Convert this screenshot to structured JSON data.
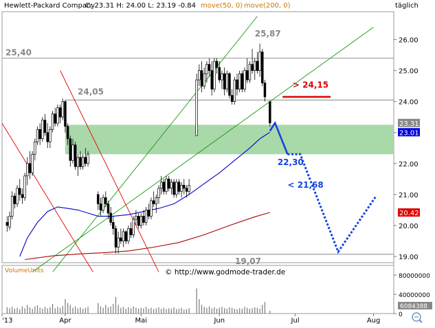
{
  "header": {
    "title": "Hewlett-Packard Company",
    "quote": "C: 23.31  H: 24.00  L: 23.19  -0.84",
    "ma50_label": "move(50, 0)",
    "ma200_label": "move(200, 0)",
    "interval": "täglich"
  },
  "colors": {
    "bull_candle": "#ffffff",
    "bear_candle": "#000000",
    "ma50": "#0000cc",
    "ma200": "#aa0000",
    "zone": "#a9d8a9",
    "trend_green": "#119911",
    "trend_red": "#dd0000",
    "projection": "#1144dd",
    "last_price_badge": "#888888",
    "ma50_badge": "#0000dd",
    "ma200_badge": "#dd0000"
  },
  "chart_data": {
    "type": "candlestick",
    "price_axis": {
      "ylim": [
        18.8,
        26.9
      ],
      "ticks": [
        "26.00",
        "25.00",
        "24.00",
        "23.00",
        "22.00",
        "21.00",
        "20.00",
        "19.00"
      ]
    },
    "time_axis": {
      "labels": [
        {
          "text": "'13",
          "day": 0
        },
        {
          "text": "Apr",
          "day": 25
        },
        {
          "text": "Mai",
          "day": 55
        },
        {
          "text": "Jun",
          "day": 86
        },
        {
          "text": "Jul",
          "day": 116
        },
        {
          "text": "Aug",
          "day": 147
        }
      ],
      "xlim": [
        0,
        155
      ]
    },
    "ohlc": [
      [
        2,
        20.1,
        20.3,
        19.8,
        20.0
      ],
      [
        3,
        19.95,
        20.45,
        19.85,
        20.3
      ],
      [
        4,
        20.3,
        21.1,
        20.2,
        20.95
      ],
      [
        5,
        20.95,
        21.05,
        20.55,
        20.7
      ],
      [
        6,
        20.7,
        21.3,
        20.6,
        21.2
      ],
      [
        7,
        21.2,
        21.5,
        20.8,
        21.0
      ],
      [
        8,
        21.0,
        21.2,
        20.7,
        20.9
      ],
      [
        9,
        20.9,
        21.7,
        20.8,
        21.6
      ],
      [
        10,
        21.6,
        22.2,
        21.3,
        22.0
      ],
      [
        11,
        22.0,
        22.4,
        21.5,
        21.7
      ],
      [
        12,
        21.7,
        22.4,
        21.6,
        22.3
      ],
      [
        13,
        22.3,
        22.8,
        22.1,
        22.7
      ],
      [
        14,
        22.7,
        23.2,
        22.6,
        23.1
      ],
      [
        15,
        23.1,
        23.3,
        22.6,
        22.8
      ],
      [
        16,
        22.8,
        23.5,
        22.7,
        23.4
      ],
      [
        17,
        23.4,
        23.6,
        22.9,
        23.0
      ],
      [
        18,
        23.0,
        23.3,
        22.5,
        22.7
      ],
      [
        19,
        22.7,
        23.2,
        22.5,
        23.1
      ],
      [
        20,
        23.1,
        23.7,
        23.0,
        23.6
      ],
      [
        21,
        23.6,
        23.8,
        23.2,
        23.3
      ],
      [
        22,
        23.3,
        23.9,
        23.2,
        23.8
      ],
      [
        23,
        23.8,
        23.9,
        23.3,
        23.5
      ],
      [
        24,
        23.5,
        24.1,
        23.4,
        24.0
      ],
      [
        25,
        24.0,
        24.05,
        23.0,
        23.2
      ],
      [
        26,
        23.2,
        23.3,
        22.6,
        22.8
      ],
      [
        27,
        22.8,
        22.9,
        21.9,
        22.1
      ],
      [
        28,
        22.1,
        22.8,
        22.0,
        22.6
      ],
      [
        29,
        22.6,
        22.7,
        21.8,
        21.9
      ],
      [
        30,
        21.9,
        22.3,
        21.6,
        22.2
      ],
      [
        31,
        22.2,
        22.4,
        21.8,
        21.9
      ],
      [
        32,
        21.9,
        22.3,
        21.8,
        22.2
      ],
      [
        33,
        22.2,
        22.5,
        21.9,
        22.0
      ],
      [
        34,
        22.0,
        22.4,
        21.9,
        22.3
      ],
      [
        38,
        21.0,
        21.1,
        20.5,
        20.7
      ],
      [
        39,
        20.7,
        20.9,
        20.3,
        20.5
      ],
      [
        40,
        20.5,
        21.0,
        20.4,
        20.9
      ],
      [
        41,
        20.9,
        21.1,
        20.6,
        20.7
      ],
      [
        42,
        20.7,
        20.8,
        20.2,
        20.4
      ],
      [
        43,
        20.4,
        20.6,
        20.0,
        20.1
      ],
      [
        44,
        20.1,
        20.3,
        19.7,
        19.9
      ],
      [
        45,
        19.9,
        20.0,
        19.1,
        19.3
      ],
      [
        46,
        19.3,
        19.8,
        19.1,
        19.6
      ],
      [
        47,
        19.6,
        19.9,
        19.4,
        19.5
      ],
      [
        48,
        19.5,
        19.9,
        19.3,
        19.8
      ],
      [
        49,
        19.8,
        19.85,
        19.4,
        19.5
      ],
      [
        50,
        19.5,
        20.0,
        19.4,
        19.9
      ],
      [
        51,
        19.9,
        20.1,
        19.6,
        19.7
      ],
      [
        52,
        19.7,
        20.3,
        19.6,
        20.2
      ],
      [
        53,
        20.2,
        20.5,
        20.0,
        20.3
      ],
      [
        54,
        20.3,
        20.4,
        19.9,
        20.0
      ],
      [
        55,
        20.0,
        20.4,
        19.9,
        20.3
      ],
      [
        56,
        20.3,
        20.5,
        20.0,
        20.1
      ],
      [
        57,
        20.1,
        20.6,
        20.0,
        20.5
      ],
      [
        58,
        20.5,
        20.7,
        20.2,
        20.3
      ],
      [
        59,
        20.3,
        20.9,
        20.2,
        20.8
      ],
      [
        60,
        20.8,
        21.1,
        20.6,
        20.7
      ],
      [
        61,
        20.7,
        21.0,
        20.4,
        20.9
      ],
      [
        62,
        20.9,
        21.3,
        20.7,
        21.2
      ],
      [
        63,
        21.2,
        21.6,
        21.0,
        21.4
      ],
      [
        64,
        21.4,
        21.5,
        21.0,
        21.1
      ],
      [
        65,
        21.1,
        21.6,
        21.0,
        21.5
      ],
      [
        66,
        21.5,
        21.6,
        21.1,
        21.2
      ],
      [
        67,
        21.2,
        21.5,
        21.0,
        21.4
      ],
      [
        68,
        21.4,
        21.5,
        20.9,
        21.0
      ],
      [
        69,
        21.0,
        21.5,
        20.9,
        21.4
      ],
      [
        70,
        21.4,
        21.5,
        21.0,
        21.1
      ],
      [
        71,
        21.1,
        21.4,
        20.9,
        21.3
      ],
      [
        72,
        21.3,
        21.5,
        21.0,
        21.2
      ],
      [
        73,
        21.2,
        21.3,
        20.9,
        21.1
      ],
      [
        74,
        21.1,
        21.5,
        21.0,
        21.3
      ],
      [
        77,
        22.9,
        24.9,
        22.9,
        24.7
      ],
      [
        78,
        24.7,
        25.2,
        24.5,
        25.0
      ],
      [
        79,
        25.0,
        25.3,
        24.3,
        24.5
      ],
      [
        80,
        24.5,
        25.1,
        24.4,
        24.9
      ],
      [
        81,
        24.9,
        25.3,
        24.6,
        25.2
      ],
      [
        82,
        25.2,
        25.4,
        24.8,
        25.0
      ],
      [
        83,
        25.0,
        25.3,
        24.2,
        24.4
      ],
      [
        84,
        24.4,
        25.4,
        24.3,
        25.3
      ],
      [
        85,
        25.3,
        25.4,
        24.9,
        25.1
      ],
      [
        86,
        25.1,
        25.3,
        24.6,
        24.7
      ],
      [
        87,
        24.7,
        25.0,
        24.4,
        24.9
      ],
      [
        88,
        24.9,
        25.1,
        24.2,
        24.4
      ],
      [
        89,
        24.4,
        25.0,
        24.3,
        24.9
      ],
      [
        90,
        24.9,
        24.95,
        24.1,
        24.2
      ],
      [
        91,
        24.2,
        24.4,
        23.9,
        24.0
      ],
      [
        92,
        24.0,
        24.8,
        23.9,
        24.7
      ],
      [
        93,
        24.7,
        24.9,
        24.2,
        24.4
      ],
      [
        94,
        24.4,
        25.0,
        24.3,
        24.9
      ],
      [
        95,
        24.9,
        25.0,
        24.3,
        24.4
      ],
      [
        96,
        24.4,
        25.1,
        24.3,
        25.0
      ],
      [
        97,
        25.0,
        25.4,
        24.6,
        24.7
      ],
      [
        98,
        24.7,
        25.3,
        24.6,
        25.2
      ],
      [
        99,
        25.2,
        25.7,
        24.9,
        25.0
      ],
      [
        100,
        25.0,
        25.4,
        24.7,
        25.3
      ],
      [
        101,
        25.3,
        25.6,
        24.9,
        25.0
      ],
      [
        102,
        25.0,
        25.87,
        24.8,
        25.6
      ],
      [
        103,
        25.6,
        25.7,
        24.5,
        24.6
      ],
      [
        104,
        24.6,
        24.7,
        24.0,
        24.15
      ],
      [
        106,
        24.0,
        24.0,
        23.19,
        23.31
      ]
    ],
    "ma50": [
      [
        7,
        19.0
      ],
      [
        10,
        19.6
      ],
      [
        14,
        20.1
      ],
      [
        18,
        20.45
      ],
      [
        22,
        20.6
      ],
      [
        26,
        20.55
      ],
      [
        30,
        20.5
      ],
      [
        34,
        20.4
      ],
      [
        38,
        20.3
      ],
      [
        44,
        20.3
      ],
      [
        50,
        20.35
      ],
      [
        56,
        20.45
      ],
      [
        62,
        20.55
      ],
      [
        68,
        20.7
      ],
      [
        74,
        21.0
      ],
      [
        80,
        21.35
      ],
      [
        86,
        21.7
      ],
      [
        92,
        22.1
      ],
      [
        98,
        22.5
      ],
      [
        102,
        22.8
      ],
      [
        106,
        23.01
      ]
    ],
    "ma200": [
      [
        9,
        18.9
      ],
      [
        20,
        19.02
      ],
      [
        30,
        19.08
      ],
      [
        40,
        19.12
      ],
      [
        50,
        19.18
      ],
      [
        60,
        19.3
      ],
      [
        70,
        19.45
      ],
      [
        80,
        19.7
      ],
      [
        90,
        20.0
      ],
      [
        100,
        20.28
      ],
      [
        106,
        20.42
      ]
    ],
    "support_zone": {
      "from_day": 25,
      "to_day": 155,
      "high": 23.25,
      "low": 22.3
    },
    "horizontal_levels": [
      {
        "label": "25,40",
        "value": 25.4,
        "from_day": 0,
        "to_day": 155
      },
      {
        "label": "24,05",
        "value": 24.05,
        "from_day": 25,
        "to_day": 155
      },
      {
        "label": "19,07",
        "value": 19.07,
        "from_day": 40,
        "to_day": 155
      }
    ],
    "level_labels": [
      {
        "label": "25,87",
        "day": 100,
        "value": 26.1
      },
      {
        "label": "24,15",
        "day": 115,
        "value": 24.45,
        "prefix": "> "
      },
      {
        "label": "22,30",
        "day": 109,
        "value": 21.95
      },
      {
        "label": "21,68",
        "day": 113,
        "value": 21.22,
        "prefix": "< "
      }
    ],
    "trend_lines": [
      {
        "color": "green",
        "from": [
          20,
          18.5
        ],
        "to": [
          101,
          26.75
        ]
      },
      {
        "color": "green",
        "from": [
          12,
          18.5
        ],
        "to": [
          147,
          26.4
        ]
      },
      {
        "color": "red",
        "from": [
          23,
          25.0
        ],
        "to": [
          62,
          18.5
        ]
      },
      {
        "color": "red",
        "from": [
          36,
          18.5
        ],
        "to": [
          0,
          23.3
        ]
      }
    ],
    "resistance_line": {
      "from_day": 111,
      "to_day": 130,
      "value": 24.15
    },
    "projection_solid": [
      [
        106,
        23.05
      ],
      [
        108,
        23.31
      ],
      [
        113,
        22.3
      ]
    ],
    "projection_dotted": [
      [
        113,
        22.3
      ],
      [
        118,
        22.3
      ],
      [
        133,
        19.15
      ],
      [
        148,
        20.95
      ]
    ],
    "badges": [
      {
        "label": "23.31",
        "value": 23.31,
        "kind": "last"
      },
      {
        "label": "23.01",
        "value": 23.01,
        "kind": "ma50"
      },
      {
        "label": "20.42",
        "value": 20.42,
        "kind": "ma200"
      }
    ],
    "volume": {
      "label": "VolumeUnits",
      "ticks": [
        "80000000",
        "40000000",
        "0"
      ],
      "last_value": "6084388",
      "max": 100000000,
      "values": [
        [
          2,
          13
        ],
        [
          3,
          11
        ],
        [
          4,
          14
        ],
        [
          5,
          10
        ],
        [
          6,
          12
        ],
        [
          7,
          9
        ],
        [
          8,
          15
        ],
        [
          9,
          11
        ],
        [
          10,
          18
        ],
        [
          11,
          13
        ],
        [
          12,
          10
        ],
        [
          13,
          15
        ],
        [
          14,
          17
        ],
        [
          15,
          12
        ],
        [
          16,
          10
        ],
        [
          17,
          14
        ],
        [
          18,
          11
        ],
        [
          19,
          13
        ],
        [
          20,
          20
        ],
        [
          21,
          11
        ],
        [
          22,
          14
        ],
        [
          23,
          12
        ],
        [
          24,
          16
        ],
        [
          25,
          30
        ],
        [
          26,
          22
        ],
        [
          27,
          18
        ],
        [
          28,
          12
        ],
        [
          29,
          15
        ],
        [
          30,
          11
        ],
        [
          31,
          13
        ],
        [
          32,
          10
        ],
        [
          33,
          12
        ],
        [
          34,
          14
        ],
        [
          38,
          22
        ],
        [
          39,
          15
        ],
        [
          40,
          12
        ],
        [
          41,
          18
        ],
        [
          42,
          13
        ],
        [
          43,
          15
        ],
        [
          44,
          20
        ],
        [
          45,
          34
        ],
        [
          46,
          18
        ],
        [
          47,
          12
        ],
        [
          48,
          14
        ],
        [
          49,
          10
        ],
        [
          50,
          13
        ],
        [
          51,
          11
        ],
        [
          52,
          15
        ],
        [
          53,
          12
        ],
        [
          54,
          10
        ],
        [
          55,
          12
        ],
        [
          56,
          11
        ],
        [
          57,
          14
        ],
        [
          58,
          10
        ],
        [
          59,
          12
        ],
        [
          60,
          9
        ],
        [
          61,
          11
        ],
        [
          62,
          13
        ],
        [
          63,
          10
        ],
        [
          64,
          12
        ],
        [
          65,
          9
        ],
        [
          66,
          11
        ],
        [
          67,
          10
        ],
        [
          68,
          13
        ],
        [
          69,
          9
        ],
        [
          70,
          10
        ],
        [
          71,
          12
        ],
        [
          72,
          8
        ],
        [
          73,
          9
        ],
        [
          74,
          11
        ],
        [
          77,
          52
        ],
        [
          78,
          30
        ],
        [
          79,
          18
        ],
        [
          80,
          14
        ],
        [
          81,
          12
        ],
        [
          82,
          15
        ],
        [
          83,
          11
        ],
        [
          84,
          13
        ],
        [
          85,
          10
        ],
        [
          86,
          12
        ],
        [
          87,
          14
        ],
        [
          88,
          11
        ],
        [
          89,
          10
        ],
        [
          90,
          13
        ],
        [
          91,
          12
        ],
        [
          92,
          10
        ],
        [
          93,
          9
        ],
        [
          94,
          11
        ],
        [
          95,
          10
        ],
        [
          96,
          14
        ],
        [
          97,
          12
        ],
        [
          98,
          10
        ],
        [
          99,
          11
        ],
        [
          100,
          13
        ],
        [
          101,
          12
        ],
        [
          102,
          10
        ],
        [
          103,
          18
        ],
        [
          104,
          24
        ],
        [
          106,
          6
        ]
      ]
    }
  },
  "annotations": {
    "watermark": "©  http://www.godmode-trader.de"
  }
}
